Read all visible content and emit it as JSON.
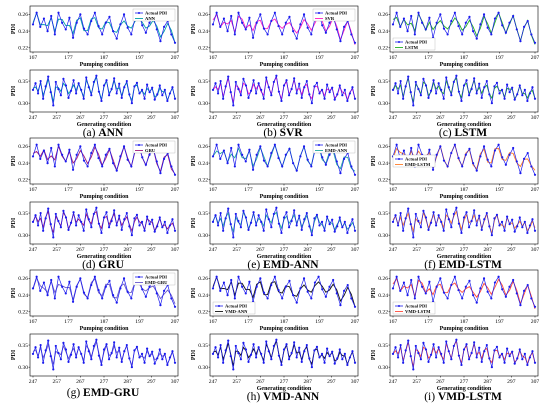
{
  "chart_data": [
    {
      "id": "a",
      "caption_letter": "(a)",
      "caption_name": "ANN",
      "type": "line",
      "color": "#00a0a8",
      "top": {
        "ylabel": "PDI",
        "xlabel": "Pumping condition",
        "xticks": [
          "167",
          "177",
          "187",
          "197",
          "207"
        ],
        "yticks": [
          "0.22",
          "0.24",
          "0.26"
        ],
        "ylim": [
          0.215,
          0.27
        ],
        "legend": [
          "Actual PDI",
          "ANN"
        ],
        "legend_pos": "top-right"
      },
      "bottom": {
        "ylabel": "PDI",
        "xlabel": "Generating condition",
        "xticks": [
          "247",
          "257",
          "267",
          "277",
          "287",
          "297",
          "307"
        ],
        "yticks": [
          "0.30",
          "0.35"
        ],
        "ylim": [
          0.28,
          0.375
        ]
      }
    },
    {
      "id": "b",
      "caption_letter": "(b)",
      "caption_name": "SVR",
      "type": "line",
      "color": "#ff1fc0",
      "top": {
        "ylabel": "PDI",
        "xlabel": "Pumping condition",
        "xticks": [
          "167",
          "177",
          "187",
          "197",
          "207"
        ],
        "yticks": [
          "0.22",
          "0.24",
          "0.26"
        ],
        "ylim": [
          0.215,
          0.27
        ],
        "legend": [
          "Actual PDI",
          "SVR"
        ],
        "legend_pos": "top-right"
      },
      "bottom": {
        "ylabel": "PDI",
        "xlabel": "Generating condition",
        "xticks": [
          "247",
          "257",
          "267",
          "277",
          "287",
          "297",
          "307"
        ],
        "yticks": [
          "0.30",
          "0.35"
        ],
        "ylim": [
          0.28,
          0.375
        ]
      }
    },
    {
      "id": "c",
      "caption_letter": "(c)",
      "caption_name": "LSTM",
      "type": "line",
      "color": "#22b022",
      "top": {
        "ylabel": "PDI",
        "xlabel": "Pumping condition",
        "xticks": [
          "167",
          "177",
          "187",
          "197",
          "207"
        ],
        "yticks": [
          "0.22",
          "0.24",
          "0.26"
        ],
        "ylim": [
          0.215,
          0.27
        ],
        "legend": [
          "Actual PDI",
          "LSTM"
        ],
        "legend_pos": "bottom-left"
      },
      "bottom": {
        "ylabel": "PDI",
        "xlabel": "Generating condition",
        "xticks": [
          "247",
          "257",
          "267",
          "277",
          "287",
          "297",
          "307"
        ],
        "yticks": [
          "0.30",
          "0.35"
        ],
        "ylim": [
          0.28,
          0.375
        ]
      }
    },
    {
      "id": "d",
      "caption_letter": "(d)",
      "caption_name": "GRU",
      "type": "line",
      "color": "#a0187a",
      "top": {
        "ylabel": "PDI",
        "xlabel": "Pumping condition",
        "xticks": [
          "167",
          "177",
          "187",
          "197",
          "207"
        ],
        "yticks": [
          "0.22",
          "0.24",
          "0.26"
        ],
        "ylim": [
          0.215,
          0.27
        ],
        "legend": [
          "Actual PDI",
          "GRU"
        ],
        "legend_pos": "top-right"
      },
      "bottom": {
        "ylabel": "PDI",
        "xlabel": "Generating condition",
        "xticks": [
          "247",
          "257",
          "267",
          "277",
          "287",
          "297",
          "307"
        ],
        "yticks": [
          "0.30",
          "0.35"
        ],
        "ylim": [
          0.28,
          0.375
        ]
      }
    },
    {
      "id": "e",
      "caption_letter": "(e)",
      "caption_name": "EMD-ANN",
      "type": "line",
      "color": "#22a8a0",
      "top": {
        "ylabel": "PDI",
        "xlabel": "Pumping condition",
        "xticks": [
          "167",
          "177",
          "187",
          "197",
          "207"
        ],
        "yticks": [
          "0.22",
          "0.24",
          "0.26"
        ],
        "ylim": [
          0.215,
          0.27
        ],
        "legend": [
          "Actual PDI",
          "EMD-ANN"
        ],
        "legend_pos": "top-right"
      },
      "bottom": {
        "ylabel": "PDI",
        "xlabel": "Generating condition",
        "xticks": [
          "247",
          "257",
          "267",
          "277",
          "287",
          "297",
          "307"
        ],
        "yticks": [
          "0.30",
          "0.35"
        ],
        "ylim": [
          0.28,
          0.375
        ]
      }
    },
    {
      "id": "f",
      "caption_letter": "(f)",
      "caption_name": "EMD-LSTM",
      "type": "line",
      "color": "#ff7d2a",
      "top": {
        "ylabel": "PDI",
        "xlabel": "Pumping condition",
        "xticks": [
          "167",
          "177",
          "187",
          "197",
          "207"
        ],
        "yticks": [
          "0.22",
          "0.24",
          "0.26"
        ],
        "ylim": [
          0.215,
          0.27
        ],
        "legend": [
          "Actual PDI",
          "EMD-LSTM"
        ],
        "legend_pos": "center-left"
      },
      "bottom": {
        "ylabel": "PDI",
        "xlabel": "Generating condition",
        "xticks": [
          "247",
          "257",
          "267",
          "277",
          "287",
          "297",
          "307"
        ],
        "yticks": [
          "0.30",
          "0.35"
        ],
        "ylim": [
          0.28,
          0.375
        ]
      }
    },
    {
      "id": "g",
      "caption_letter": "(g)",
      "caption_name": "EMD-GRU",
      "type": "line",
      "color": "#6a5acd",
      "top": {
        "ylabel": "PDI",
        "xlabel": "Pumping condition",
        "xticks": [
          "167",
          "177",
          "187",
          "197",
          "207"
        ],
        "yticks": [
          "0.22",
          "0.24",
          "0.26"
        ],
        "ylim": [
          0.215,
          0.27
        ],
        "legend": [
          "Actual PDI",
          "EMD-GRU"
        ],
        "legend_pos": "top-right"
      },
      "bottom": {
        "ylabel": "PDI",
        "xlabel": "",
        "xticks": [
          "247",
          "257",
          "267",
          "277",
          "287",
          "297",
          "307"
        ],
        "yticks": [
          "0.30",
          "0.35"
        ],
        "ylim": [
          0.28,
          0.375
        ]
      }
    },
    {
      "id": "h",
      "caption_letter": "(h)",
      "caption_name": "VMD-ANN",
      "type": "line",
      "color": "#111111",
      "top": {
        "ylabel": "PDI",
        "xlabel": "Pumping condition",
        "xticks": [
          "167",
          "177",
          "187",
          "197",
          "207"
        ],
        "yticks": [
          "0.22",
          "0.24",
          "0.26"
        ],
        "ylim": [
          0.215,
          0.27
        ],
        "legend": [
          "Actual PDI",
          "VMD-ANN"
        ],
        "legend_pos": "bottom-left"
      },
      "bottom": {
        "ylabel": "PDI",
        "xlabel": "Generating condition",
        "xticks": [
          "247",
          "257",
          "267",
          "277",
          "287",
          "297",
          "307"
        ],
        "yticks": [
          "0.30",
          "0.35"
        ],
        "ylim": [
          0.28,
          0.375
        ]
      }
    },
    {
      "id": "i",
      "caption_letter": "(i)",
      "caption_name": "VMD-LSTM",
      "type": "line",
      "color": "#ff4a3a",
      "top": {
        "ylabel": "PDI",
        "xlabel": "Pumping condition",
        "xticks": [
          "167",
          "177",
          "187",
          "197",
          "207"
        ],
        "yticks": [
          "0.22",
          "0.24",
          "0.26"
        ],
        "ylim": [
          0.215,
          0.27
        ],
        "legend": [
          "Actual PDI",
          "VMD-LSTM"
        ],
        "legend_pos": "bottom-left"
      },
      "bottom": {
        "ylabel": "PDI",
        "xlabel": "Generating condition",
        "xticks": [
          "247",
          "257",
          "267",
          "277",
          "287",
          "297",
          "307"
        ],
        "yticks": [
          "0.30",
          "0.35"
        ],
        "ylim": [
          0.28,
          0.375
        ]
      }
    }
  ],
  "actual_color": "#1a1aee",
  "series_top_actual": [
    0.248,
    0.262,
    0.245,
    0.255,
    0.24,
    0.258,
    0.236,
    0.262,
    0.25,
    0.242,
    0.256,
    0.232,
    0.25,
    0.26,
    0.243,
    0.236,
    0.252,
    0.262,
    0.246,
    0.236,
    0.25,
    0.257,
    0.24,
    0.231,
    0.248,
    0.26,
    0.244,
    0.236,
    0.255,
    0.262,
    0.247,
    0.238,
    0.25,
    0.258,
    0.242,
    0.228,
    0.245,
    0.252,
    0.236,
    0.226
  ],
  "series_bottom_actual": [
    0.33,
    0.345,
    0.322,
    0.35,
    0.31,
    0.338,
    0.36,
    0.325,
    0.295,
    0.348,
    0.332,
    0.318,
    0.355,
    0.34,
    0.312,
    0.328,
    0.352,
    0.322,
    0.345,
    0.33,
    0.31,
    0.358,
    0.336,
    0.318,
    0.348,
    0.362,
    0.326,
    0.305,
    0.34,
    0.352,
    0.318,
    0.332,
    0.356,
    0.322,
    0.344,
    0.312,
    0.336,
    0.35,
    0.32,
    0.3,
    0.338,
    0.346,
    0.322,
    0.33,
    0.31,
    0.342,
    0.325,
    0.335,
    0.308,
    0.32,
    0.34,
    0.318,
    0.33,
    0.305,
    0.322,
    0.336,
    0.31
  ]
}
